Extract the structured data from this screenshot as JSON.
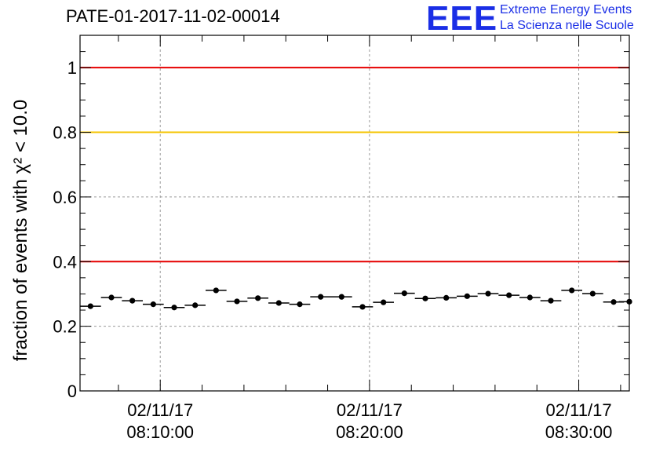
{
  "header": {
    "title": "PATE-01-2017-11-02-00014",
    "logo_mark": "EEE",
    "logo_line1": "Extreme Energy Events",
    "logo_line2": "La Scienza nelle Scuole"
  },
  "chart_data": {
    "type": "scatter",
    "title": "PATE-01-2017-11-02-00014",
    "ylabel": "fraction of events with χ² < 10.0",
    "xlabel": "",
    "ylim": [
      0,
      1.1
    ],
    "yticks": [
      "0",
      "0.2",
      "0.4",
      "0.6",
      "0.8",
      "1"
    ],
    "ytick_values": [
      0,
      0.2,
      0.4,
      0.6,
      0.8,
      1.0
    ],
    "xlim": [
      "08:06:10",
      "08:32:25"
    ],
    "xticks": [
      {
        "time": "08:10:00",
        "date": "02/11/17"
      },
      {
        "time": "08:20:00",
        "date": "02/11/17"
      },
      {
        "time": "08:30:00",
        "date": "02/11/17"
      }
    ],
    "grid": true,
    "reference_lines": [
      {
        "y": 1.0,
        "color": "#e60000"
      },
      {
        "y": 0.8,
        "color": "#f5c400"
      },
      {
        "y": 0.4,
        "color": "#e60000"
      }
    ],
    "series": [
      {
        "x": [
          "08:06:40",
          "08:07:40",
          "08:08:40",
          "08:09:40",
          "08:10:40",
          "08:11:40",
          "08:12:40",
          "08:13:40",
          "08:14:40",
          "08:15:40",
          "08:16:40",
          "08:17:40",
          "08:18:40",
          "08:19:40",
          "08:20:40",
          "08:21:40",
          "08:22:40",
          "08:23:40",
          "08:24:40",
          "08:25:40",
          "08:26:40",
          "08:27:40",
          "08:28:40",
          "08:29:40",
          "08:30:40",
          "08:31:40",
          "08:32:25"
        ],
        "y": [
          0.262,
          0.289,
          0.279,
          0.268,
          0.258,
          0.265,
          0.311,
          0.277,
          0.287,
          0.272,
          0.268,
          0.291,
          0.291,
          0.26,
          0.274,
          0.302,
          0.286,
          0.288,
          0.293,
          0.301,
          0.296,
          0.289,
          0.279,
          0.311,
          0.301,
          0.275,
          0.276
        ],
        "xerr_seconds": 30,
        "yerr": 0.005
      }
    ]
  }
}
